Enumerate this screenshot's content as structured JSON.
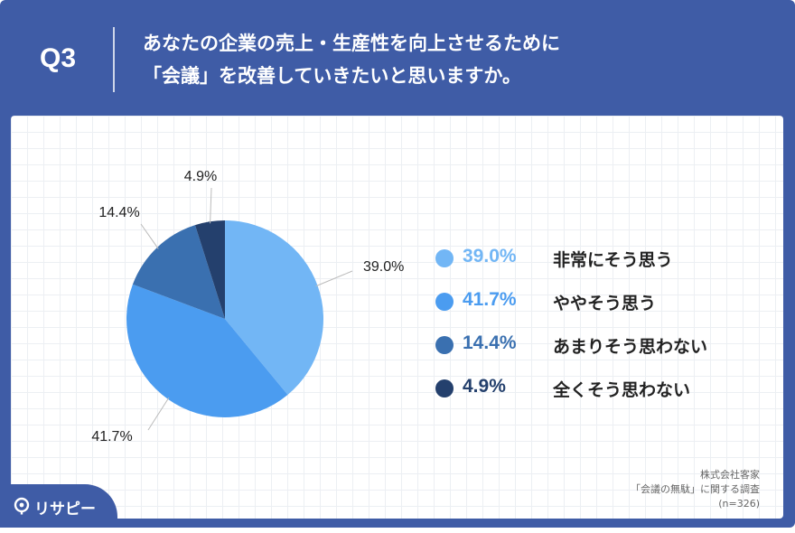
{
  "header": {
    "q_number": "Q3",
    "question_line1": "あなたの企業の売上・生産性を向上させるために",
    "question_line2": "「会議」を改善していきたいと思いますか。"
  },
  "chart_data": {
    "type": "pie",
    "title": "",
    "slices": [
      {
        "label": "非常にそう思う",
        "value": 39.0,
        "display": "39.0%",
        "color": "#72b6f5"
      },
      {
        "label": "ややそう思う",
        "value": 41.7,
        "display": "41.7%",
        "color": "#4b9cf0"
      },
      {
        "label": "あまりそう思わない",
        "value": 14.4,
        "display": "14.4%",
        "color": "#3a70b0"
      },
      {
        "label": "全くそう思わない",
        "value": 4.9,
        "display": "4.9%",
        "color": "#24406d"
      }
    ],
    "legend_placement": "right"
  },
  "source": {
    "line1": "株式会社客家",
    "line2": "「会議の無駄」に関する調査",
    "line3": "(n=326)"
  },
  "brand": {
    "name": "リサピー",
    "accent": "#3f5ca6"
  }
}
